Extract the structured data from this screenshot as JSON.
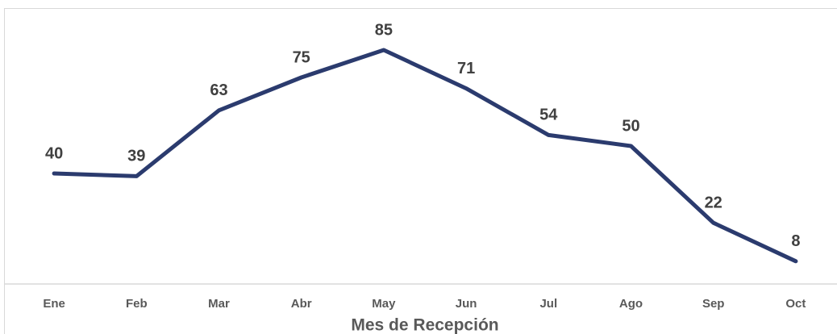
{
  "chart_data": {
    "type": "line",
    "x_label": "Mes de Recepción",
    "categories": [
      "Ene",
      "Feb",
      "Mar",
      "Abr",
      "May",
      "Jun",
      "Jul",
      "Ago",
      "Sep",
      "Oct"
    ],
    "values": [
      40,
      39,
      63,
      75,
      85,
      71,
      54,
      50,
      22,
      8
    ],
    "color": "#2b3b6e",
    "ylim": [
      0,
      100
    ]
  }
}
